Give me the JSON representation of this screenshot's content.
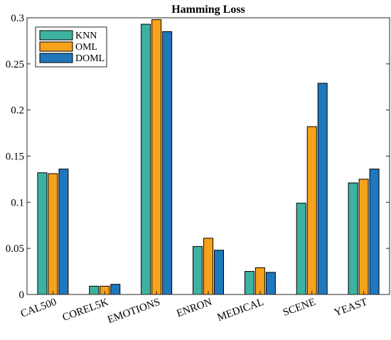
{
  "chart_data": {
    "type": "bar",
    "title": "Hamming Loss",
    "xlabel": "",
    "ylabel": "",
    "categories": [
      "CAL500",
      "COREL5K",
      "EMOTIONS",
      "ENRON",
      "MEDICAL",
      "SCENE",
      "YEAST"
    ],
    "series": [
      {
        "name": "KNN",
        "color": "#3cb3a0",
        "values": [
          0.132,
          0.009,
          0.293,
          0.052,
          0.025,
          0.099,
          0.121
        ]
      },
      {
        "name": "OML",
        "color": "#f7a21b",
        "values": [
          0.131,
          0.009,
          0.298,
          0.061,
          0.029,
          0.182,
          0.125
        ]
      },
      {
        "name": "DOML",
        "color": "#1f78bd",
        "values": [
          0.136,
          0.011,
          0.285,
          0.048,
          0.024,
          0.229,
          0.136
        ]
      }
    ],
    "ylim": [
      0,
      0.3
    ],
    "yticks": [
      0,
      0.05,
      0.1,
      0.15,
      0.2,
      0.25,
      0.3
    ],
    "ytick_labels": [
      "0",
      "0.05",
      "0.1",
      "0.15",
      "0.2",
      "0.25",
      "0.3"
    ],
    "legend_position": "top-left",
    "grid": false
  }
}
